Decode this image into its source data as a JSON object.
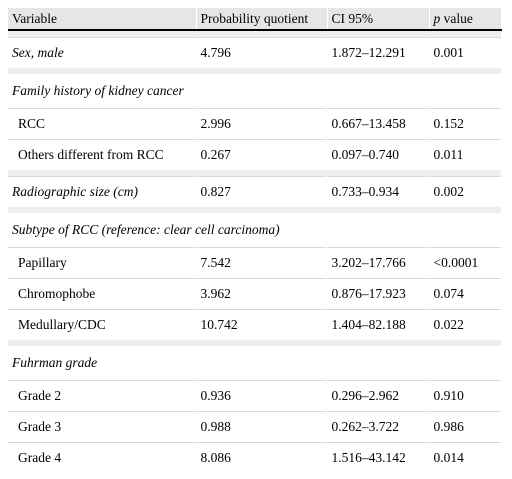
{
  "header": {
    "variable": "Variable",
    "probability_quotient": "Probability quotient",
    "ci": "CI 95%",
    "p_letter": "p",
    "p_rest": " value"
  },
  "sections": [
    {
      "title": "",
      "rows": [
        {
          "label": "Sex, male",
          "italic": true,
          "pq": "4.796",
          "ci": "1.872–12.291",
          "p": "0.001"
        }
      ]
    },
    {
      "title": "Family history of kidney cancer",
      "rows": [
        {
          "label": "RCC",
          "pq": "2.996",
          "ci": "0.667–13.458",
          "p": "0.152"
        },
        {
          "label": "Others different from RCC",
          "pq": "0.267",
          "ci": "0.097–0.740",
          "p": "0.011"
        }
      ]
    },
    {
      "title": "",
      "rows": [
        {
          "label": "Radiographic size (cm)",
          "italic": true,
          "pq": "0.827",
          "ci": "0.733–0.934",
          "p": "0.002"
        }
      ]
    },
    {
      "title": "Subtype of RCC (reference: clear cell carcinoma)",
      "rows": [
        {
          "label": "Papillary",
          "pq": "7.542",
          "ci": "3.202–17.766",
          "p": "<0.0001"
        },
        {
          "label": "Chromophobe",
          "pq": "3.962",
          "ci": "0.876–17.923",
          "p": "0.074"
        },
        {
          "label": "Medullary/CDC",
          "pq": "10.742",
          "ci": "1.404–82.188",
          "p": "0.022"
        }
      ]
    },
    {
      "title": "Fuhrman grade",
      "rows": [
        {
          "label": "Grade 2",
          "pq": "0.936",
          "ci": "0.296–2.962",
          "p": "0.910"
        },
        {
          "label": "Grade 3",
          "pq": "0.988",
          "ci": "0.262–3.722",
          "p": "0.986"
        },
        {
          "label": "Grade 4",
          "pq": "8.086",
          "ci": "1.516–43.142",
          "p": "0.014"
        }
      ]
    }
  ]
}
